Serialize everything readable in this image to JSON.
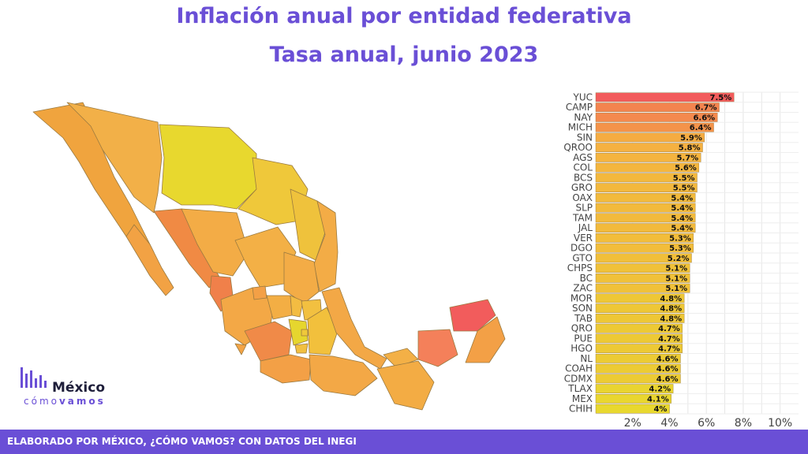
{
  "header": {
    "title_line1": "Inflación anual por entidad federativa",
    "title_line2": "Tasa anual, junio 2023"
  },
  "logo": {
    "word1": "México",
    "word2a": "cómo",
    "word2b": "vamos"
  },
  "footer": {
    "text": "ELABORADO POR MÉXICO, ¿CÓMO VAMOS? CON DATOS DEL INEGI"
  },
  "colors": {
    "accent": "#6a4fd6",
    "high": "#f25c5c",
    "mid": "#f5b340",
    "low": "#e8d82e"
  },
  "chart_data": {
    "type": "bar",
    "orientation": "horizontal",
    "categories": [
      "YUC",
      "CAMP",
      "NAY",
      "MICH",
      "SIN",
      "QROO",
      "AGS",
      "COL",
      "BCS",
      "GRO",
      "OAX",
      "SLP",
      "TAM",
      "JAL",
      "VER",
      "DGO",
      "GTO",
      "CHPS",
      "BC",
      "ZAC",
      "MOR",
      "SON",
      "TAB",
      "QRO",
      "PUE",
      "HGO",
      "NL",
      "COAH",
      "CDMX",
      "TLAX",
      "MEX",
      "CHIH"
    ],
    "values": [
      7.5,
      6.7,
      6.6,
      6.4,
      5.9,
      5.8,
      5.7,
      5.6,
      5.5,
      5.5,
      5.4,
      5.4,
      5.4,
      5.4,
      5.3,
      5.3,
      5.2,
      5.1,
      5.1,
      5.1,
      4.8,
      4.8,
      4.8,
      4.7,
      4.7,
      4.7,
      4.6,
      4.6,
      4.6,
      4.2,
      4.1,
      4.0
    ],
    "labels": [
      "7.5%",
      "6.7%",
      "6.6%",
      "6.4%",
      "5.9%",
      "5.8%",
      "5.7%",
      "5.6%",
      "5.5%",
      "5.5%",
      "5.4%",
      "5.4%",
      "5.4%",
      "5.4%",
      "5.3%",
      "5.3%",
      "5.2%",
      "5.1%",
      "5.1%",
      "5.1%",
      "4.8%",
      "4.8%",
      "4.8%",
      "4.7%",
      "4.7%",
      "4.7%",
      "4.6%",
      "4.6%",
      "4.6%",
      "4.2%",
      "4.1%",
      "4%"
    ],
    "xlim": [
      0,
      11
    ],
    "xticks": [
      2,
      4,
      6,
      8,
      10
    ],
    "xtick_labels": [
      "2%",
      "4%",
      "6%",
      "8%",
      "10%"
    ],
    "grid": true
  }
}
